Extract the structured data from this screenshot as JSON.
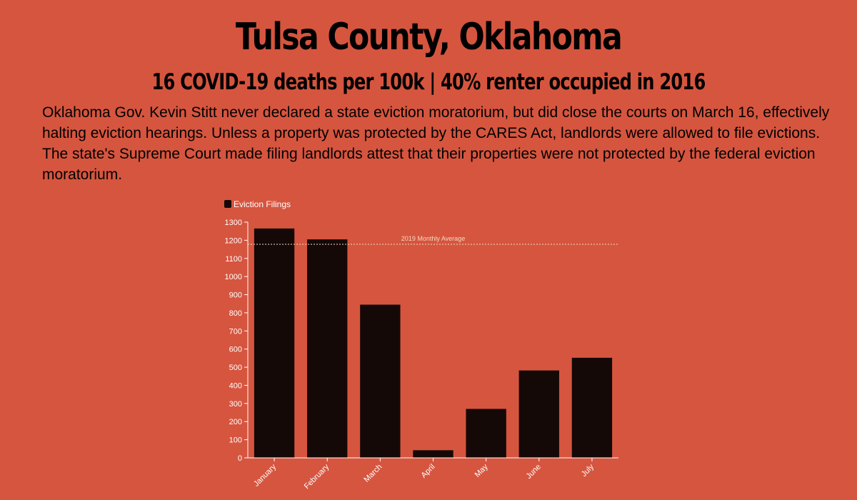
{
  "header": {
    "title": "Tulsa County, Oklahoma",
    "subtitle": "16 COVID-19 deaths per 100k | 40% renter occupied in 2016",
    "body": "Oklahoma Gov. Kevin Stitt never declared a state eviction moratorium, but did close the courts on March 16, effectively halting eviction hearings. Unless a property was protected by the CARES Act, landlords were allowed to file evictions. The state's Supreme Court made filing landlords attest that their properties were not protected by the federal eviction moratorium."
  },
  "chart_data": {
    "type": "bar",
    "title": "",
    "xlabel": "",
    "ylabel": "",
    "categories": [
      "January",
      "February",
      "March",
      "April",
      "May",
      "June",
      "July"
    ],
    "series": [
      {
        "name": "Eviction Filings",
        "values": [
          1265,
          1205,
          845,
          42,
          270,
          482,
          552
        ]
      }
    ],
    "ylim": [
      0,
      1300
    ],
    "yticks": [
      0,
      100,
      200,
      300,
      400,
      500,
      600,
      700,
      800,
      900,
      1000,
      1100,
      1200,
      1300
    ],
    "reference_line": {
      "label": "2019 Monthly Average",
      "value": 1178
    },
    "legend_position": "top-left",
    "grid": false,
    "colors": {
      "background": "#d6553f",
      "bar": "#140907",
      "axis": "#ffffff",
      "reference_line": "#f3d9c0"
    }
  }
}
